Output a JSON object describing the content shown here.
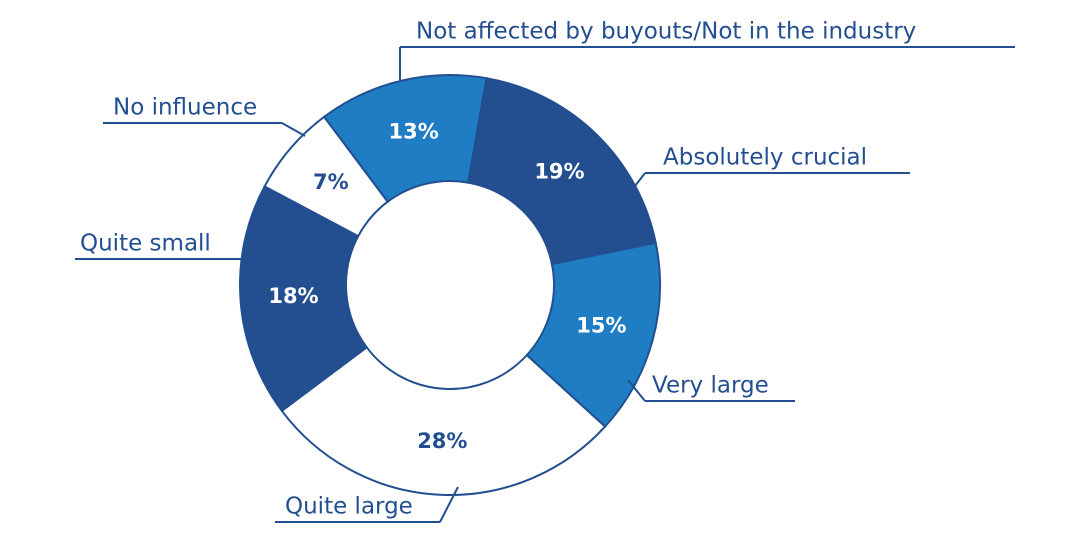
{
  "chart_data": {
    "type": "pie",
    "categories": [
      "Absolutely crucial",
      "Very large",
      "Quite large",
      "Quite small",
      "No influence",
      "Not affected by buyouts/Not in the industry"
    ],
    "values": [
      19,
      15,
      28,
      18,
      7,
      13
    ],
    "value_labels": [
      "19%",
      "15%",
      "28%",
      "18%",
      "7%",
      "13%"
    ],
    "colors": [
      "#234f91",
      "#1f7dc4",
      "#ffffff",
      "#234f91",
      "#ffffff",
      "#1f7dc4"
    ]
  }
}
